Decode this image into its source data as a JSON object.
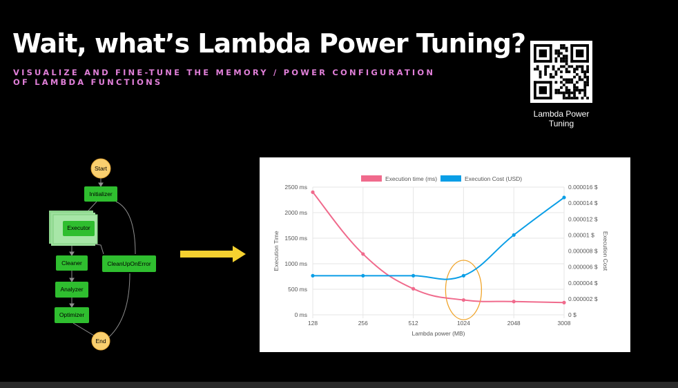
{
  "slide": {
    "title": "Wait, what’s Lambda Power Tuning?",
    "subtitle_line1": "VISUALIZE AND FINE-TUNE THE MEMORY / POWER CONFIGURATION",
    "subtitle_line2": "OF LAMBDA FUNCTIONS",
    "qr_caption_line1": "Lambda Power",
    "qr_caption_line2": "Tuning"
  },
  "workflow": {
    "start": "Start",
    "initializer": "Initializer",
    "executor": "Executor",
    "cleaner": "Cleaner",
    "cleanup_on_error": "CleanUpOnError",
    "analyzer": "Analyzer",
    "optimizer": "Optimizer",
    "end": "End"
  },
  "colors": {
    "execution_time": "#f06a8c",
    "execution_cost": "#0a9ee6",
    "highlight": "#f0a42a",
    "arrow": "#f5d130",
    "step_green": "#2fbe2f",
    "terminal_yellow": "#f9cf6f"
  },
  "chart_data": {
    "type": "line",
    "x": [
      "128",
      "256",
      "512",
      "1024",
      "2048",
      "3008"
    ],
    "xlabel": "Lambda power (MB)",
    "ylabel_left": "Execution Time",
    "ylabel_right": "Execution Cost",
    "y_left_ticks": [
      "0 ms",
      "500 ms",
      "1000 ms",
      "1500 ms",
      "2000 ms",
      "2500 ms"
    ],
    "y_right_ticks": [
      "0 $",
      "0.000002 $",
      "0.000004 $",
      "0.000006 $",
      "0.000008 $",
      "0.00001 $",
      "0.000012 $",
      "0.000014 $",
      "0.000016 $"
    ],
    "ylim_left": [
      0,
      2500
    ],
    "ylim_right": [
      0,
      1.6e-05
    ],
    "series": [
      {
        "name": "Execution time (ms)",
        "axis": "left",
        "values": [
          2400,
          1190,
          510,
          290,
          260,
          240
        ]
      },
      {
        "name": "Execution Cost (USD)",
        "axis": "right",
        "values": [
          4.9e-06,
          4.9e-06,
          4.9e-06,
          4.9e-06,
          1e-05,
          1.47e-05
        ]
      }
    ],
    "legend": "top",
    "grid": true,
    "annotation": "circle around 1024"
  }
}
